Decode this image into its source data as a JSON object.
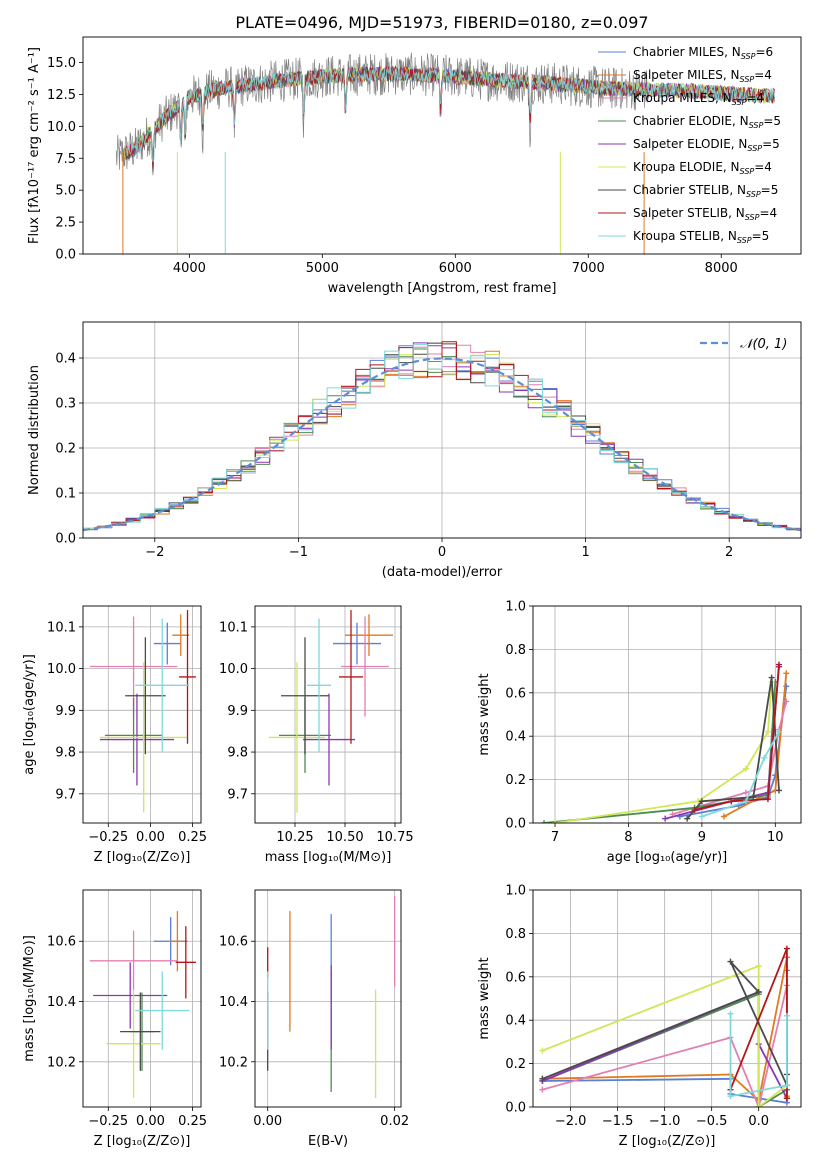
{
  "figure_title": "PLATE=0496, MJD=51973, FIBERID=0180, z=0.097",
  "colors": {
    "MILES_Chabrier": "#5b7fd6",
    "MILES_Salpeter": "#e07a1f",
    "MILES_Kroupa": "#e37fb3",
    "ELODIE_Chabrier": "#4e8c4e",
    "ELODIE_Salpeter": "#8e35b5",
    "ELODIE_Kroupa": "#cfe857",
    "STELIB_Chabrier": "#4a4a4a",
    "STELIB_Salpeter": "#b3161a",
    "STELIB_Kroupa": "#7fd9dd",
    "data": "#808080",
    "normal": "#5b8fd6"
  },
  "chart_data": [
    {
      "id": "spectrum",
      "type": "line",
      "title": "PLATE=0496, MJD=51973, FIBERID=0180, z=0.097",
      "xlabel": "wavelength [Angstrom, rest frame]",
      "ylabel": "Flux [fλ10⁻¹⁷ erg cm⁻² s⁻¹ A⁻¹]",
      "xlim": [
        3200,
        8600
      ],
      "ylim": [
        0,
        17
      ],
      "xticks": [
        "4000",
        "5000",
        "6000",
        "7000",
        "8000"
      ],
      "yticks": [
        "0.0",
        "2.5",
        "5.0",
        "7.5",
        "10.0",
        "12.5",
        "15.0"
      ],
      "grid": false,
      "legend_position": "right",
      "legend": [
        {
          "pre": "Chabrier MILES, N",
          "post": "=6",
          "color_key": "MILES_Chabrier"
        },
        {
          "pre": "Salpeter MILES, N",
          "post": "=4",
          "color_key": "MILES_Salpeter"
        },
        {
          "pre": "Kroupa MILES, N",
          "post": "=4",
          "color_key": "MILES_Kroupa"
        },
        {
          "pre": "Chabrier ELODIE, N",
          "post": "=5",
          "color_key": "ELODIE_Chabrier"
        },
        {
          "pre": "Salpeter ELODIE, N",
          "post": "=5",
          "color_key": "ELODIE_Salpeter"
        },
        {
          "pre": "Kroupa ELODIE, N",
          "post": "=4",
          "color_key": "ELODIE_Kroupa"
        },
        {
          "pre": "Chabrier STELIB, N",
          "post": "=5",
          "color_key": "STELIB_Chabrier"
        },
        {
          "pre": "Salpeter STELIB, N",
          "post": "=4",
          "color_key": "STELIB_Salpeter"
        },
        {
          "pre": "Kroupa STELIB, N",
          "post": "=5",
          "color_key": "STELIB_Kroupa"
        }
      ],
      "legend_subscript": "SSP",
      "continuum_x": [
        3450,
        3600,
        3800,
        4000,
        4200,
        4400,
        4700,
        5000,
        5300,
        5600,
        5900,
        6200,
        6500,
        6800,
        7100,
        7400,
        7700,
        8000,
        8300
      ],
      "continuum_y": [
        7.6,
        8.3,
        10.5,
        12.3,
        12.9,
        13.2,
        13.6,
        13.9,
        14.1,
        14.1,
        14.0,
        13.7,
        13.5,
        13.3,
        13.0,
        12.9,
        12.8,
        12.6,
        12.4
      ],
      "data_x_range": [
        3450,
        7450
      ],
      "model_x_range": [
        3480,
        8400
      ]
    },
    {
      "id": "residuals",
      "type": "histogram",
      "xlabel": "(data-model)/error",
      "ylabel": "Normed distribution",
      "xlim": [
        -2.5,
        2.5
      ],
      "ylim": [
        0,
        0.48
      ],
      "xticks": [
        "−2",
        "−1",
        "0",
        "1",
        "2"
      ],
      "yticks": [
        "0.0",
        "0.1",
        "0.2",
        "0.3",
        "0.4"
      ],
      "grid": true,
      "legend_position": "upper right",
      "legend_label": "𝒩(0, 1)",
      "bin_width": 0.1,
      "normal_mean": 0,
      "normal_sigma": 1
    },
    {
      "id": "age_vs_Z",
      "type": "errorbar",
      "xlabel": "Z [log₁₀(Z/Z⊙)]",
      "ylabel": "age  [log₁₀(age/yr)]",
      "xlim": [
        -0.4,
        0.3
      ],
      "ylim": [
        9.63,
        10.15
      ],
      "xticks": [
        "−0.25",
        "0.00",
        "0.25"
      ],
      "yticks": [
        "9.7",
        "9.8",
        "9.9",
        "10.0",
        "10.1"
      ],
      "grid": true,
      "points": [
        {
          "c": "MILES_Chabrier",
          "x": 0.1,
          "xe": 0.08,
          "y": 10.06,
          "ye": 0.05
        },
        {
          "c": "MILES_Salpeter",
          "x": 0.18,
          "xe": 0.05,
          "y": 10.08,
          "ye": 0.05
        },
        {
          "c": "MILES_Kroupa",
          "x": -0.1,
          "xe": 0.26,
          "y": 10.005,
          "ye": 0.12
        },
        {
          "c": "ELODIE_Chabrier",
          "x": -0.1,
          "xe": 0.17,
          "y": 9.84,
          "ye": 0.09
        },
        {
          "c": "ELODIE_Salpeter",
          "x": -0.08,
          "xe": 0.22,
          "y": 9.83,
          "ye": 0.11
        },
        {
          "c": "ELODIE_Kroupa",
          "x": -0.04,
          "xe": 0.26,
          "y": 9.835,
          "ye": 0.18
        },
        {
          "c": "STELIB_Chabrier",
          "x": -0.03,
          "xe": 0.12,
          "y": 9.935,
          "ye": 0.14
        },
        {
          "c": "STELIB_Salpeter",
          "x": 0.22,
          "xe": 0.05,
          "y": 9.98,
          "ye": 0.16
        },
        {
          "c": "STELIB_Kroupa",
          "x": 0.07,
          "xe": 0.16,
          "y": 9.96,
          "ye": 0.16
        }
      ]
    },
    {
      "id": "age_vs_mass",
      "type": "errorbar",
      "xlabel": "mass [log₁₀(M/M⊙)]",
      "ylabel": "",
      "xlim": [
        10.05,
        10.78
      ],
      "ylim": [
        9.63,
        10.15
      ],
      "xticks": [
        "10.25",
        "10.50",
        "10.75"
      ],
      "yticks": [
        "9.7",
        "9.8",
        "9.9",
        "10.0",
        "10.1"
      ],
      "grid": true,
      "points": [
        {
          "c": "MILES_Chabrier",
          "x": 10.56,
          "xe": 0.12,
          "y": 10.06,
          "ye": 0.05
        },
        {
          "c": "MILES_Salpeter",
          "x": 10.62,
          "xe": 0.12,
          "y": 10.08,
          "ye": 0.05
        },
        {
          "c": "MILES_Kroupa",
          "x": 10.6,
          "xe": 0.12,
          "y": 10.005,
          "ye": 0.12
        },
        {
          "c": "ELODIE_Chabrier",
          "x": 10.3,
          "xe": 0.13,
          "y": 9.84,
          "ye": 0.09
        },
        {
          "c": "ELODIE_Salpeter",
          "x": 10.42,
          "xe": 0.13,
          "y": 9.83,
          "ye": 0.11
        },
        {
          "c": "ELODIE_Kroupa",
          "x": 10.26,
          "xe": 0.14,
          "y": 9.835,
          "ye": 0.18
        },
        {
          "c": "STELIB_Chabrier",
          "x": 10.3,
          "xe": 0.12,
          "y": 9.935,
          "ye": 0.14
        },
        {
          "c": "STELIB_Salpeter",
          "x": 10.53,
          "xe": 0.06,
          "y": 9.98,
          "ye": 0.16
        },
        {
          "c": "STELIB_Kroupa",
          "x": 10.37,
          "xe": 0.06,
          "y": 9.96,
          "ye": 0.16
        }
      ]
    },
    {
      "id": "weight_vs_age",
      "type": "line",
      "xlabel": "age  [log₁₀(age/yr)]",
      "ylabel": "mass weight",
      "xlim": [
        6.7,
        10.35
      ],
      "ylim": [
        0,
        1.0
      ],
      "xticks": [
        "7",
        "8",
        "9",
        "10"
      ],
      "yticks": [
        "0.0",
        "0.2",
        "0.4",
        "0.6",
        "0.8",
        "1.0"
      ],
      "grid": true,
      "series": [
        {
          "c": "MILES_Chabrier",
          "x": [
            8.7,
            9.5,
            9.9,
            10.0,
            10.15
          ],
          "y": [
            0.03,
            0.08,
            0.12,
            0.22,
            0.63
          ]
        },
        {
          "c": "MILES_Salpeter",
          "x": [
            9.3,
            9.8,
            10.0,
            10.15
          ],
          "y": [
            0.03,
            0.12,
            0.15,
            0.69
          ]
        },
        {
          "c": "MILES_Kroupa",
          "x": [
            8.6,
            9.6,
            9.9,
            10.05,
            10.15
          ],
          "y": [
            0.04,
            0.14,
            0.17,
            0.43,
            0.56
          ]
        },
        {
          "c": "ELODIE_Chabrier",
          "x": [
            6.85,
            8.9,
            9.9,
            10.0
          ],
          "y": [
            0.0,
            0.07,
            0.13,
            0.65
          ]
        },
        {
          "c": "ELODIE_Salpeter",
          "x": [
            8.5,
            9.4,
            9.9,
            10.05
          ],
          "y": [
            0.02,
            0.1,
            0.14,
            0.72
          ]
        },
        {
          "c": "ELODIE_Kroupa",
          "x": [
            7.0,
            8.95,
            9.6,
            9.9,
            9.95
          ],
          "y": [
            0.0,
            0.1,
            0.25,
            0.42,
            0.65
          ]
        },
        {
          "c": "STELIB_Chabrier",
          "x": [
            8.8,
            9.0,
            9.7,
            9.95,
            10.05
          ],
          "y": [
            0.02,
            0.1,
            0.12,
            0.67,
            0.15
          ]
        },
        {
          "c": "STELIB_Salpeter",
          "x": [
            8.9,
            9.4,
            9.9,
            10.05
          ],
          "y": [
            0.06,
            0.1,
            0.11,
            0.73
          ]
        },
        {
          "c": "STELIB_Kroupa",
          "x": [
            9.0,
            9.6,
            9.85,
            10.05
          ],
          "y": [
            0.03,
            0.1,
            0.3,
            0.42
          ]
        }
      ]
    },
    {
      "id": "mass_vs_Z",
      "type": "errorbar",
      "xlabel": "Z [log₁₀(Z/Z⊙)]",
      "ylabel": "mass [log₁₀(M/M⊙)]",
      "xlim": [
        -0.4,
        0.3
      ],
      "ylim": [
        10.05,
        10.77
      ],
      "xticks": [
        "−0.25",
        "0.00",
        "0.25"
      ],
      "yticks": [
        "10.2",
        "10.4",
        "10.6"
      ],
      "grid": true,
      "points": [
        {
          "c": "MILES_Chabrier",
          "x": 0.12,
          "xe": 0.1,
          "y": 10.6,
          "ye": 0.08
        },
        {
          "c": "MILES_Salpeter",
          "x": 0.16,
          "xe": 0.05,
          "y": 10.6,
          "ye": 0.1
        },
        {
          "c": "MILES_Kroupa",
          "x": -0.1,
          "xe": 0.26,
          "y": 10.535,
          "ye": 0.1
        },
        {
          "c": "ELODIE_Chabrier",
          "x": -0.05,
          "xe": 0.07,
          "y": 10.3,
          "ye": 0.13
        },
        {
          "c": "ELODIE_Salpeter",
          "x": -0.12,
          "xe": 0.22,
          "y": 10.42,
          "ye": 0.11
        },
        {
          "c": "ELODIE_Kroupa",
          "x": -0.1,
          "xe": 0.16,
          "y": 10.26,
          "ye": 0.18
        },
        {
          "c": "STELIB_Chabrier",
          "x": -0.06,
          "xe": 0.12,
          "y": 10.3,
          "ye": 0.13
        },
        {
          "c": "STELIB_Salpeter",
          "x": 0.21,
          "xe": 0.06,
          "y": 10.53,
          "ye": 0.12
        },
        {
          "c": "STELIB_Kroupa",
          "x": 0.07,
          "xe": 0.16,
          "y": 10.37,
          "ye": 0.13
        }
      ]
    },
    {
      "id": "mass_vs_ebv",
      "type": "errorbar",
      "xlabel": "E(B-V)",
      "ylabel": "",
      "xlim": [
        -0.002,
        0.021
      ],
      "ylim": [
        10.05,
        10.77
      ],
      "xticks": [
        "0.00",
        "0.02"
      ],
      "yticks": [
        "10.2",
        "10.4",
        "10.6"
      ],
      "grid": true,
      "points": [
        {
          "c": "MILES_Chabrier",
          "x": 0.01,
          "xe": 0,
          "y": 10.56,
          "ye": 0.13
        },
        {
          "c": "MILES_Salpeter",
          "x": 0.0035,
          "xe": 0,
          "y": 10.5,
          "ye": 0.2
        },
        {
          "c": "MILES_Kroupa",
          "x": 0.02,
          "xe": 0,
          "y": 10.6,
          "ye": 0.15
        },
        {
          "c": "ELODIE_Chabrier",
          "x": 0.01,
          "xe": 0,
          "y": 10.3,
          "ye": 0.2
        },
        {
          "c": "ELODIE_Salpeter",
          "x": 0.01,
          "xe": 0,
          "y": 10.38,
          "ye": 0.14
        },
        {
          "c": "ELODIE_Kroupa",
          "x": 0.017,
          "xe": 0,
          "y": 10.26,
          "ye": 0.18
        },
        {
          "c": "STELIB_Chabrier",
          "x": 0.0,
          "xe": 0,
          "y": 10.3,
          "ye": 0.13
        },
        {
          "c": "STELIB_Salpeter",
          "x": 0.0,
          "xe": 0,
          "y": 10.53,
          "ye": 0.05
        },
        {
          "c": "STELIB_Kroupa",
          "x": 0.0,
          "xe": 0,
          "y": 10.37,
          "ye": 0.13
        }
      ]
    },
    {
      "id": "weight_vs_Z",
      "type": "line",
      "xlabel": "Z [log₁₀(Z/Z⊙)]",
      "ylabel": "mass weight",
      "xlim": [
        -2.4,
        0.45
      ],
      "ylim": [
        0,
        1.0
      ],
      "xticks": [
        "−2.0",
        "−1.5",
        "−1.0",
        "−0.5",
        "0.0"
      ],
      "yticks": [
        "0.0",
        "0.2",
        "0.4",
        "0.6",
        "0.8",
        "1.0"
      ],
      "grid": true,
      "series": [
        {
          "c": "MILES_Chabrier",
          "x": [
            -2.3,
            -0.3,
            -0.3,
            0.3,
            0.3
          ],
          "y": [
            0.12,
            0.13,
            0.06,
            0.02,
            0.63
          ]
        },
        {
          "c": "MILES_Salpeter",
          "x": [
            -2.3,
            -0.3,
            0.0,
            0.3,
            0.3
          ],
          "y": [
            0.13,
            0.15,
            0.03,
            0.69,
            0.05
          ]
        },
        {
          "c": "MILES_Kroupa",
          "x": [
            -2.3,
            -0.3,
            0.0,
            0.3
          ],
          "y": [
            0.08,
            0.32,
            0.0,
            0.56
          ]
        },
        {
          "c": "ELODIE_Chabrier",
          "x": [
            -2.3,
            0.0,
            0.0,
            0.3
          ],
          "y": [
            0.12,
            0.52,
            0.0,
            0.08
          ]
        },
        {
          "c": "ELODIE_Salpeter",
          "x": [
            -2.3,
            0.0,
            0.0,
            0.3
          ],
          "y": [
            0.12,
            0.53,
            0.29,
            0.04
          ]
        },
        {
          "c": "ELODIE_Kroupa",
          "x": [
            -2.3,
            0.0,
            0.0,
            0.3
          ],
          "y": [
            0.26,
            0.65,
            0.0,
            0.1
          ]
        },
        {
          "c": "STELIB_Chabrier",
          "x": [
            -2.3,
            0.0,
            -0.3,
            0.3,
            0.3
          ],
          "y": [
            0.13,
            0.53,
            0.67,
            0.1,
            0.15
          ]
        },
        {
          "c": "STELIB_Salpeter",
          "x": [
            -0.3,
            0.3,
            0.3
          ],
          "y": [
            0.08,
            0.73,
            0.04
          ]
        },
        {
          "c": "STELIB_Kroupa",
          "x": [
            -0.3,
            -0.3,
            0.3,
            0.3
          ],
          "y": [
            0.43,
            0.05,
            0.1,
            0.42
          ]
        }
      ]
    }
  ]
}
